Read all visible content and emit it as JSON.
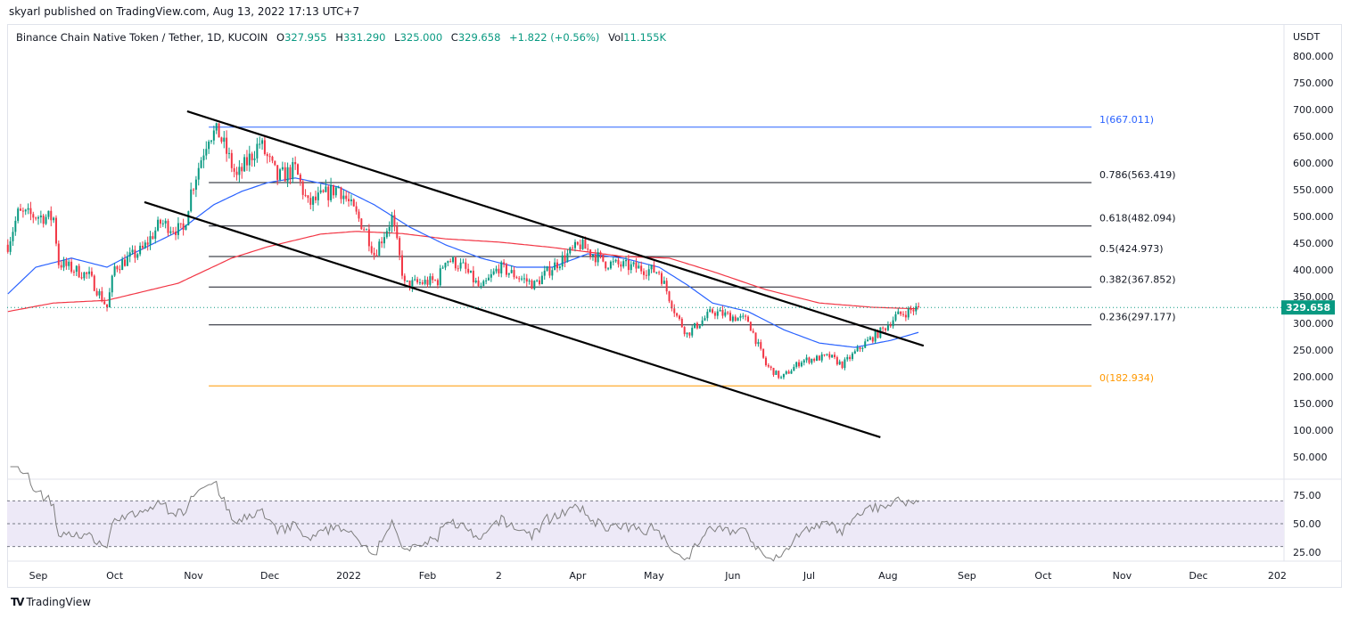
{
  "header": {
    "published": "skyarl published on TradingView.com, Aug 13, 2022 17:13 UTC+7"
  },
  "legend": {
    "symbol": "Binance Chain Native Token / Tether, 1D, KUCOIN",
    "o_label": "O",
    "o": "327.955",
    "h_label": "H",
    "h": "331.290",
    "l_label": "L",
    "l": "325.000",
    "c_label": "C",
    "c": "329.658",
    "change": "+1.822 (+0.56%)",
    "vol_label": "Vol",
    "vol": "11.155K"
  },
  "footer": {
    "brand": "TradingView",
    "logo": "TV"
  },
  "colors": {
    "up": "#089981",
    "down": "#f23645",
    "ma_fast": "#2962ff",
    "ma_slow": "#f23645",
    "fib_0": "#ff9800",
    "fib_1": "#2962ff",
    "fib": "#131722",
    "rsi": "#7e7e7e",
    "rsi_band": "#ede9f7"
  },
  "chart_data": {
    "type": "candlestick",
    "x_unit": "days since 2021-09-01",
    "currency": "USDT",
    "price_ticks": [
      "800.000",
      "750.000",
      "700.000",
      "650.000",
      "600.000",
      "550.000",
      "500.000",
      "450.000",
      "400.000",
      "350.000",
      "300.000",
      "250.000",
      "200.000",
      "150.000",
      "100.000",
      "50.000"
    ],
    "price_tick_values": [
      800,
      750,
      700,
      650,
      600,
      550,
      500,
      450,
      400,
      350,
      300,
      250,
      200,
      150,
      100,
      50
    ],
    "ylim": [
      50,
      800
    ],
    "last_price": "329.658",
    "last_price_value": 329.658,
    "time_ticks": [
      {
        "label": "Sep",
        "day": 0
      },
      {
        "label": "Oct",
        "day": 30
      },
      {
        "label": "Nov",
        "day": 61
      },
      {
        "label": "Dec",
        "day": 91
      },
      {
        "label": "2022",
        "day": 122
      },
      {
        "label": "Feb",
        "day": 153
      },
      {
        "label": "2",
        "day": 181
      },
      {
        "label": "Apr",
        "day": 212
      },
      {
        "label": "May",
        "day": 242
      },
      {
        "label": "Jun",
        "day": 273
      },
      {
        "label": "Jul",
        "day": 303
      },
      {
        "label": "Aug",
        "day": 334
      },
      {
        "label": "Sep",
        "day": 365
      },
      {
        "label": "Oct",
        "day": 395
      },
      {
        "label": "Nov",
        "day": 426
      },
      {
        "label": "Dec",
        "day": 456
      },
      {
        "label": "202",
        "day": 487
      }
    ],
    "xlim": [
      -12,
      492
    ],
    "close_waypoints": [
      [
        -12,
        447
      ],
      [
        -8,
        505
      ],
      [
        6,
        497
      ],
      [
        8,
        413
      ],
      [
        20,
        388
      ],
      [
        27,
        330
      ],
      [
        30,
        405
      ],
      [
        41,
        438
      ],
      [
        48,
        488
      ],
      [
        57,
        472
      ],
      [
        60,
        547
      ],
      [
        67,
        655
      ],
      [
        71,
        655
      ],
      [
        78,
        572
      ],
      [
        87,
        638
      ],
      [
        94,
        572
      ],
      [
        101,
        588
      ],
      [
        106,
        522
      ],
      [
        118,
        555
      ],
      [
        129,
        472
      ],
      [
        132,
        430
      ],
      [
        139,
        497
      ],
      [
        144,
        372
      ],
      [
        157,
        380
      ],
      [
        160,
        422
      ],
      [
        167,
        405
      ],
      [
        174,
        363
      ],
      [
        181,
        405
      ],
      [
        195,
        372
      ],
      [
        202,
        405
      ],
      [
        213,
        447
      ],
      [
        223,
        413
      ],
      [
        244,
        397
      ],
      [
        251,
        313
      ],
      [
        255,
        280
      ],
      [
        265,
        322
      ],
      [
        279,
        305
      ],
      [
        286,
        222
      ],
      [
        292,
        197
      ],
      [
        300,
        230
      ],
      [
        311,
        238
      ],
      [
        316,
        222
      ],
      [
        325,
        263
      ],
      [
        332,
        288
      ],
      [
        337,
        313
      ],
      [
        346,
        329.658
      ]
    ],
    "ma_fast_waypoints": [
      [
        -12,
        355
      ],
      [
        -1,
        405
      ],
      [
        13,
        422
      ],
      [
        27,
        405
      ],
      [
        37,
        430
      ],
      [
        55,
        472
      ],
      [
        69,
        522
      ],
      [
        80,
        547
      ],
      [
        90,
        563
      ],
      [
        101,
        572
      ],
      [
        118,
        555
      ],
      [
        132,
        522
      ],
      [
        146,
        480
      ],
      [
        160,
        447
      ],
      [
        174,
        422
      ],
      [
        188,
        405
      ],
      [
        202,
        405
      ],
      [
        216,
        430
      ],
      [
        230,
        422
      ],
      [
        244,
        405
      ],
      [
        255,
        372
      ],
      [
        265,
        338
      ],
      [
        279,
        322
      ],
      [
        293,
        288
      ],
      [
        307,
        263
      ],
      [
        321,
        255
      ],
      [
        335,
        268
      ],
      [
        346,
        283
      ]
    ],
    "ma_slow_waypoints": [
      [
        -12,
        322
      ],
      [
        6,
        338
      ],
      [
        27,
        343
      ],
      [
        55,
        375
      ],
      [
        76,
        422
      ],
      [
        90,
        443
      ],
      [
        111,
        467
      ],
      [
        125,
        472
      ],
      [
        143,
        468
      ],
      [
        160,
        458
      ],
      [
        181,
        452
      ],
      [
        202,
        442
      ],
      [
        230,
        425
      ],
      [
        248,
        422
      ],
      [
        265,
        397
      ],
      [
        286,
        363
      ],
      [
        307,
        338
      ],
      [
        328,
        330
      ],
      [
        346,
        327
      ]
    ],
    "trendlines": [
      {
        "name": "upper-channel",
        "from": [
          58.5,
          696.7
        ],
        "to": [
          348,
          258
        ]
      },
      {
        "name": "lower-channel",
        "from": [
          41.7,
          526.7
        ],
        "to": [
          331,
          86.7
        ]
      }
    ],
    "fib_range": {
      "from_day": 67,
      "to_day": 414
    },
    "fib_levels": [
      {
        "label": "1(667.011)",
        "ratio": 1,
        "price": 667.011
      },
      {
        "label": "0.786(563.419)",
        "ratio": 0.786,
        "price": 563.419
      },
      {
        "label": "0.618(482.094)",
        "ratio": 0.618,
        "price": 482.094
      },
      {
        "label": "0.5(424.973)",
        "ratio": 0.5,
        "price": 424.973
      },
      {
        "label": "0.382(367.852)",
        "ratio": 0.382,
        "price": 367.852
      },
      {
        "label": "0.236(297.177)",
        "ratio": 0.236,
        "price": 297.177
      },
      {
        "label": "0(182.934)",
        "ratio": 0,
        "price": 182.934
      }
    ],
    "rsi": {
      "ticks": [
        "75.00",
        "50.00",
        "25.00"
      ],
      "tick_values": [
        75,
        50,
        25
      ],
      "upper": 70,
      "middle": 50,
      "lower": 30,
      "period": 14
    }
  }
}
